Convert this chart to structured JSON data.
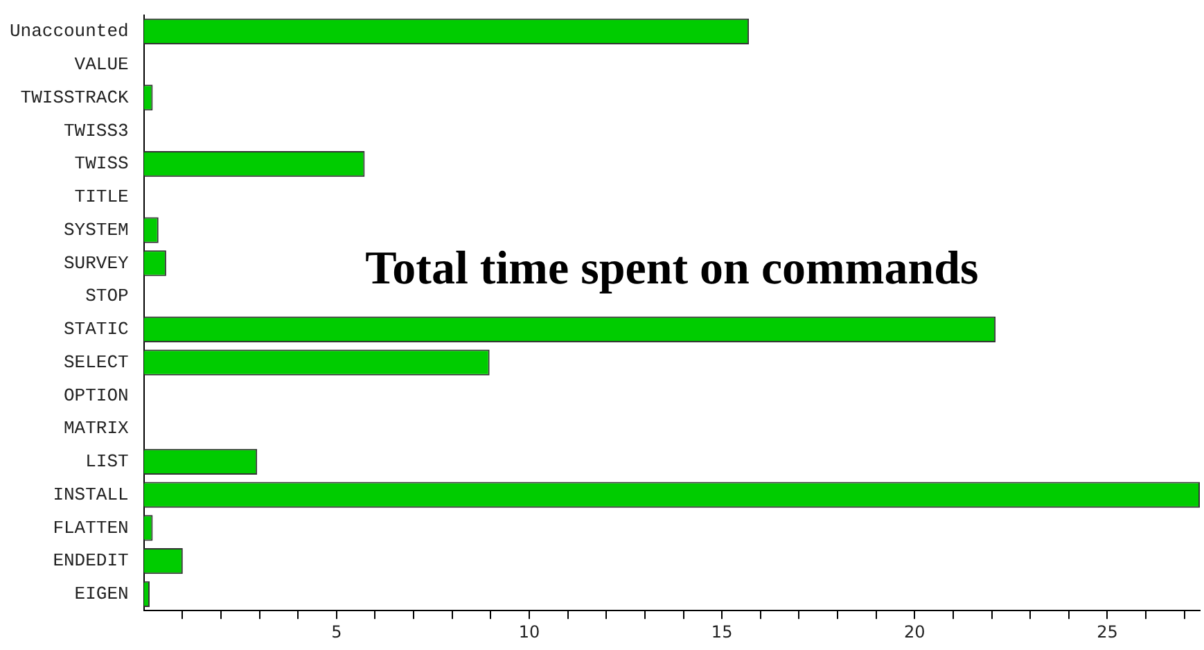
{
  "chart_data": {
    "type": "bar",
    "orientation": "horizontal",
    "title": "Total time spent on commands",
    "categories": [
      "Unaccounted",
      "VALUE",
      "TWISSTRACK",
      "TWISS3",
      "TWISS",
      "TITLE",
      "SYSTEM",
      "SURVEY",
      "STOP",
      "STATIC",
      "SELECT",
      "OPTION",
      "MATRIX",
      "LIST",
      "INSTALL",
      "FLATTEN",
      "ENDEDIT",
      "EIGEN"
    ],
    "values": [
      15.7,
      null,
      0.23,
      null,
      5.73,
      null,
      0.38,
      0.58,
      null,
      22.1,
      8.97,
      null,
      null,
      2.94,
      27.4,
      0.23,
      1.01,
      0.15
    ],
    "color": "#00cc00",
    "xlim": [
      0,
      27.4
    ],
    "xticks": [
      {
        "value": 1,
        "label": null
      },
      {
        "value": 2,
        "label": null
      },
      {
        "value": 3,
        "label": null
      },
      {
        "value": 4,
        "label": null
      },
      5,
      {
        "value": 6,
        "label": null
      },
      {
        "value": 7,
        "label": null
      },
      {
        "value": 8,
        "label": null
      },
      {
        "value": 9,
        "label": null
      },
      10,
      {
        "value": 11,
        "label": null
      },
      {
        "value": 12,
        "label": null
      },
      {
        "value": 13,
        "label": null
      },
      {
        "value": 14,
        "label": null
      },
      15,
      {
        "value": 16,
        "label": null
      },
      {
        "value": 17,
        "label": null
      },
      {
        "value": 18,
        "label": null
      },
      {
        "value": 19,
        "label": null
      },
      20,
      {
        "value": 21,
        "label": null
      },
      {
        "value": 22,
        "label": null
      },
      {
        "value": 23,
        "label": null
      },
      {
        "value": 24,
        "label": null
      },
      25,
      {
        "value": 26,
        "label": null
      },
      {
        "value": 27,
        "label": null
      }
    ],
    "grid": false,
    "legend": false
  }
}
